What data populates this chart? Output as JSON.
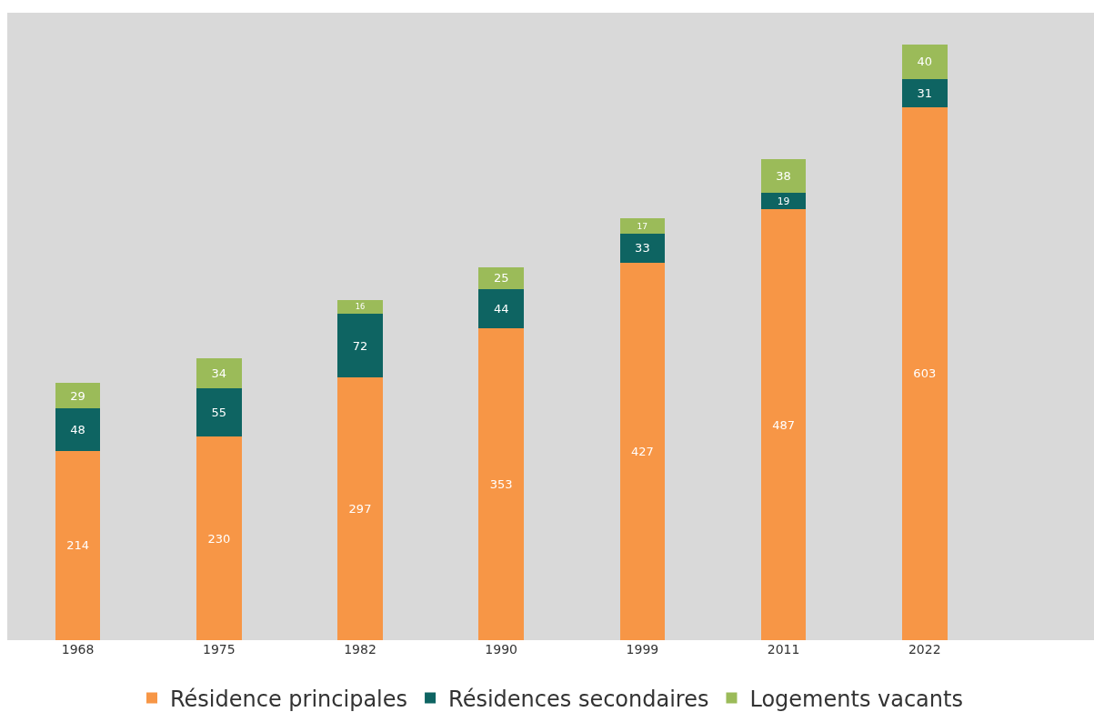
{
  "chart_data": {
    "type": "bar",
    "stacked": true,
    "categories": [
      "1968",
      "1975",
      "1982",
      "1990",
      "1999",
      "2011",
      "2022"
    ],
    "series": [
      {
        "name": "Résidence principales",
        "color": "#f79646",
        "values": [
          214,
          230,
          297,
          353,
          427,
          487,
          603
        ]
      },
      {
        "name": "Résidences secondaires",
        "color": "#0e6462",
        "values": [
          48,
          55,
          72,
          44,
          33,
          19,
          31
        ]
      },
      {
        "name": "Logements vacants",
        "color": "#9bbb59",
        "values": [
          29,
          34,
          16,
          25,
          17,
          38,
          40
        ]
      }
    ],
    "data_labels": true,
    "legend": "bottom",
    "grid": false,
    "tick_labels": "x"
  }
}
